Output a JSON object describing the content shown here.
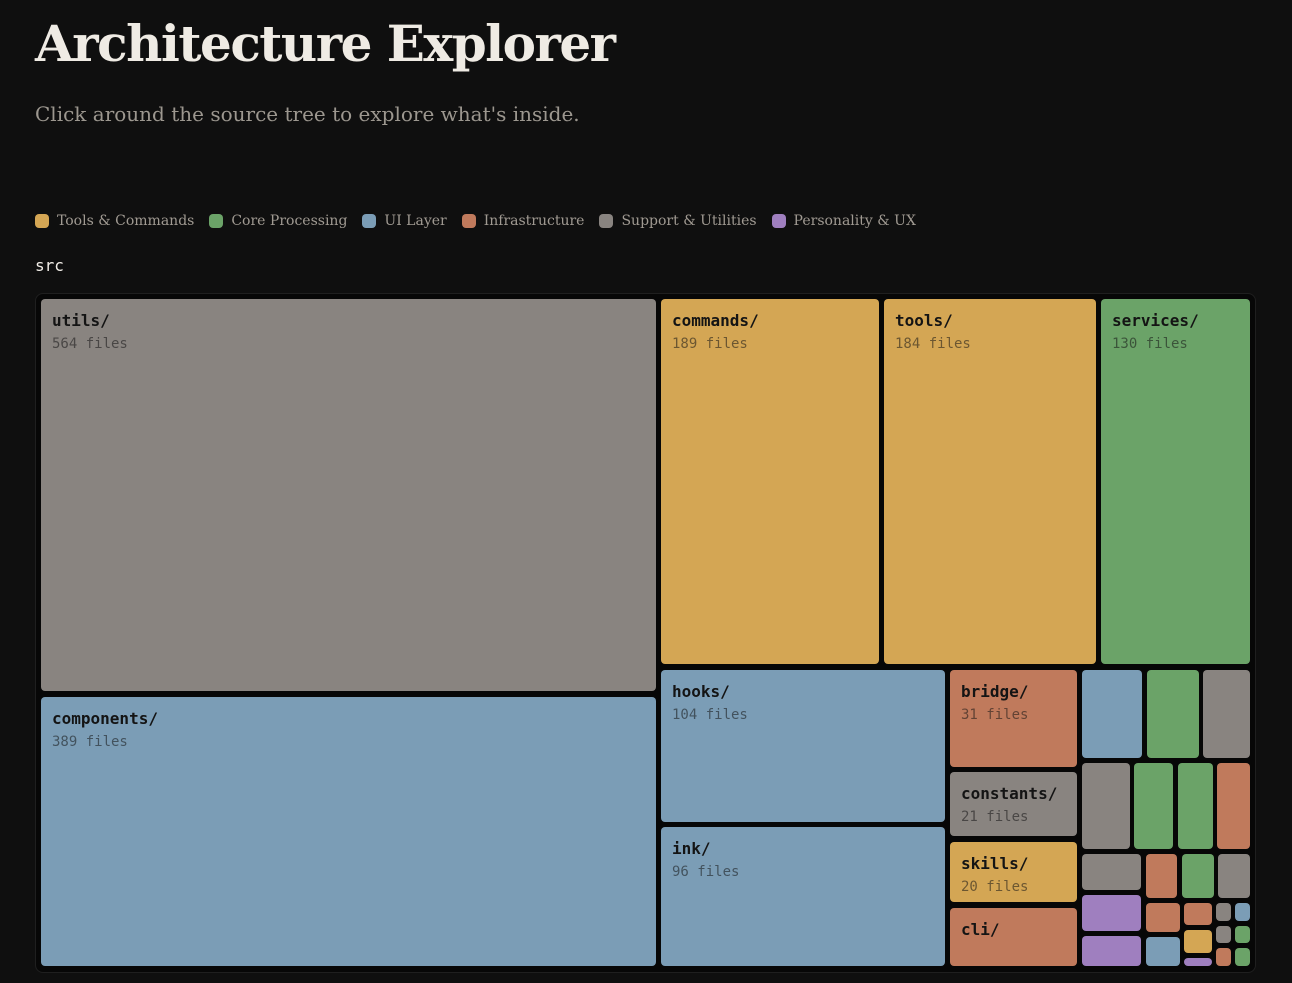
{
  "header": {
    "title": "Architecture Explorer",
    "subtitle": "Click around the source tree to explore what's inside."
  },
  "legend": [
    {
      "label": "Tools & Commands",
      "color": "#d4a654"
    },
    {
      "label": "Core Processing",
      "color": "#6ba368"
    },
    {
      "label": "UI Layer",
      "color": "#7b9db6"
    },
    {
      "label": "Infrastructure",
      "color": "#c07a5c"
    },
    {
      "label": "Support & Utilities",
      "color": "#898480"
    },
    {
      "label": "Personality & UX",
      "color": "#9f7fbf"
    }
  ],
  "breadcrumb": "src",
  "treemap": {
    "utils": {
      "name": "utils/",
      "count": "564 files"
    },
    "components": {
      "name": "components/",
      "count": "389 files"
    },
    "commands": {
      "name": "commands/",
      "count": "189 files"
    },
    "tools": {
      "name": "tools/",
      "count": "184 files"
    },
    "services": {
      "name": "services/",
      "count": "130 files"
    },
    "hooks": {
      "name": "hooks/",
      "count": "104 files"
    },
    "ink": {
      "name": "ink/",
      "count": "96 files"
    },
    "bridge": {
      "name": "bridge/",
      "count": "31 files"
    },
    "constants": {
      "name": "constants/",
      "count": "21 files"
    },
    "skills": {
      "name": "skills/",
      "count": "20 files"
    },
    "cli": {
      "name": "cli/"
    }
  }
}
